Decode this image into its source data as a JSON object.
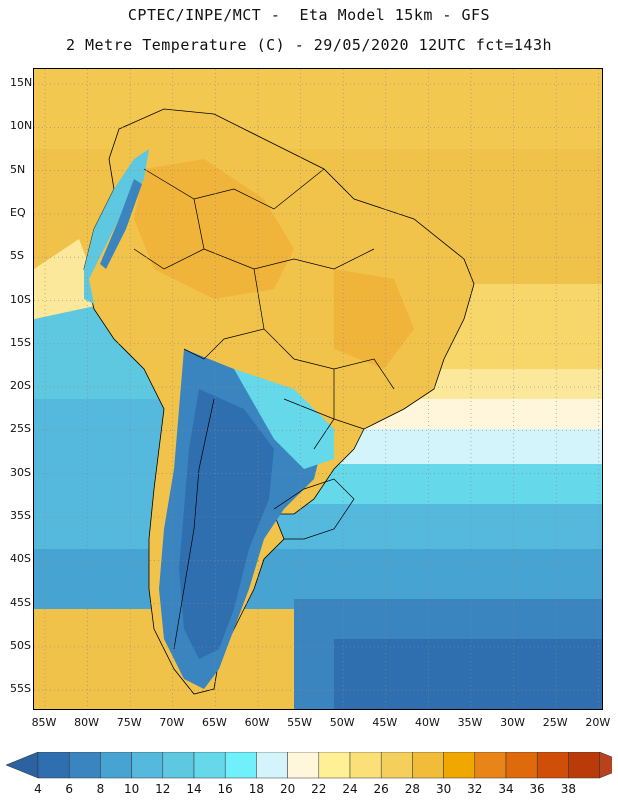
{
  "header": {
    "line1": "CPTEC/INPE/MCT -  Eta Model 15km - GFS",
    "line2": "2 Metre Temperature (C) - 29/05/2020 12UTC fct=143h"
  },
  "map": {
    "lat_labels": [
      "15N",
      "10N",
      "5N",
      "EQ",
      "5S",
      "10S",
      "15S",
      "20S",
      "25S",
      "30S",
      "35S",
      "40S",
      "45S",
      "50S",
      "55S"
    ],
    "lon_labels": [
      "85W",
      "80W",
      "75W",
      "70W",
      "65W",
      "60W",
      "55W",
      "50W",
      "45W",
      "40W",
      "35W",
      "30W",
      "25W",
      "20W"
    ],
    "region": "South America"
  },
  "colorbar": {
    "labels": [
      "4",
      "6",
      "8",
      "10",
      "12",
      "14",
      "16",
      "18",
      "20",
      "22",
      "24",
      "26",
      "28",
      "30",
      "32",
      "34",
      "36",
      "38"
    ],
    "colors": [
      "#2f6fb0",
      "#3a85c0",
      "#47a4d2",
      "#55b8dd",
      "#5ec8e0",
      "#65d8ea",
      "#6ff0fa",
      "#d2f4fa",
      "#fff6dc",
      "#fff096",
      "#fbe07a",
      "#f5cf5c",
      "#f0bc3a",
      "#f0a800",
      "#e88418",
      "#df6a0c",
      "#cf4e08",
      "#bb3a0a"
    ],
    "under_color": "#2d62a0",
    "over_color": "#b8421e"
  }
}
